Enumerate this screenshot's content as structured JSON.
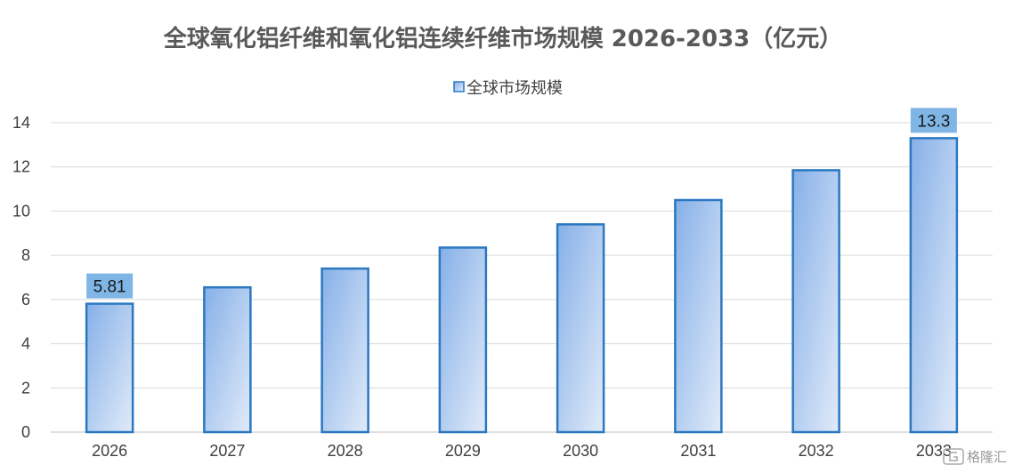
{
  "chart_data": {
    "type": "bar",
    "title": "全球氧化铝纤维和氧化铝连续纤维市场规模 2026-2033（亿元）",
    "xlabel": "",
    "ylabel": "",
    "categories": [
      "2026",
      "2027",
      "2028",
      "2029",
      "2030",
      "2031",
      "2032",
      "2033"
    ],
    "series": [
      {
        "name": "全球市场规模",
        "values": [
          5.81,
          6.55,
          7.4,
          8.35,
          9.4,
          10.5,
          11.85,
          13.3
        ]
      }
    ],
    "data_labels": [
      {
        "category": "2026",
        "text": "5.81"
      },
      {
        "category": "2033",
        "text": "13.3"
      }
    ],
    "ylim": [
      0,
      14
    ],
    "yticks": [
      0,
      2,
      4,
      6,
      8,
      10,
      12,
      14
    ],
    "grid": true,
    "legend_position": "top-center",
    "colors": {
      "bar_gradient_start": "#86b0e8",
      "bar_gradient_end": "#e1ebf9",
      "bar_border": "#2a78c0",
      "data_label_background": "#7fb6e6",
      "gridline": "#d9d9d9",
      "axis_line": "#bfbfbf"
    }
  },
  "watermark": {
    "icon": "gelonghui-logo-icon",
    "text": "格隆汇"
  }
}
